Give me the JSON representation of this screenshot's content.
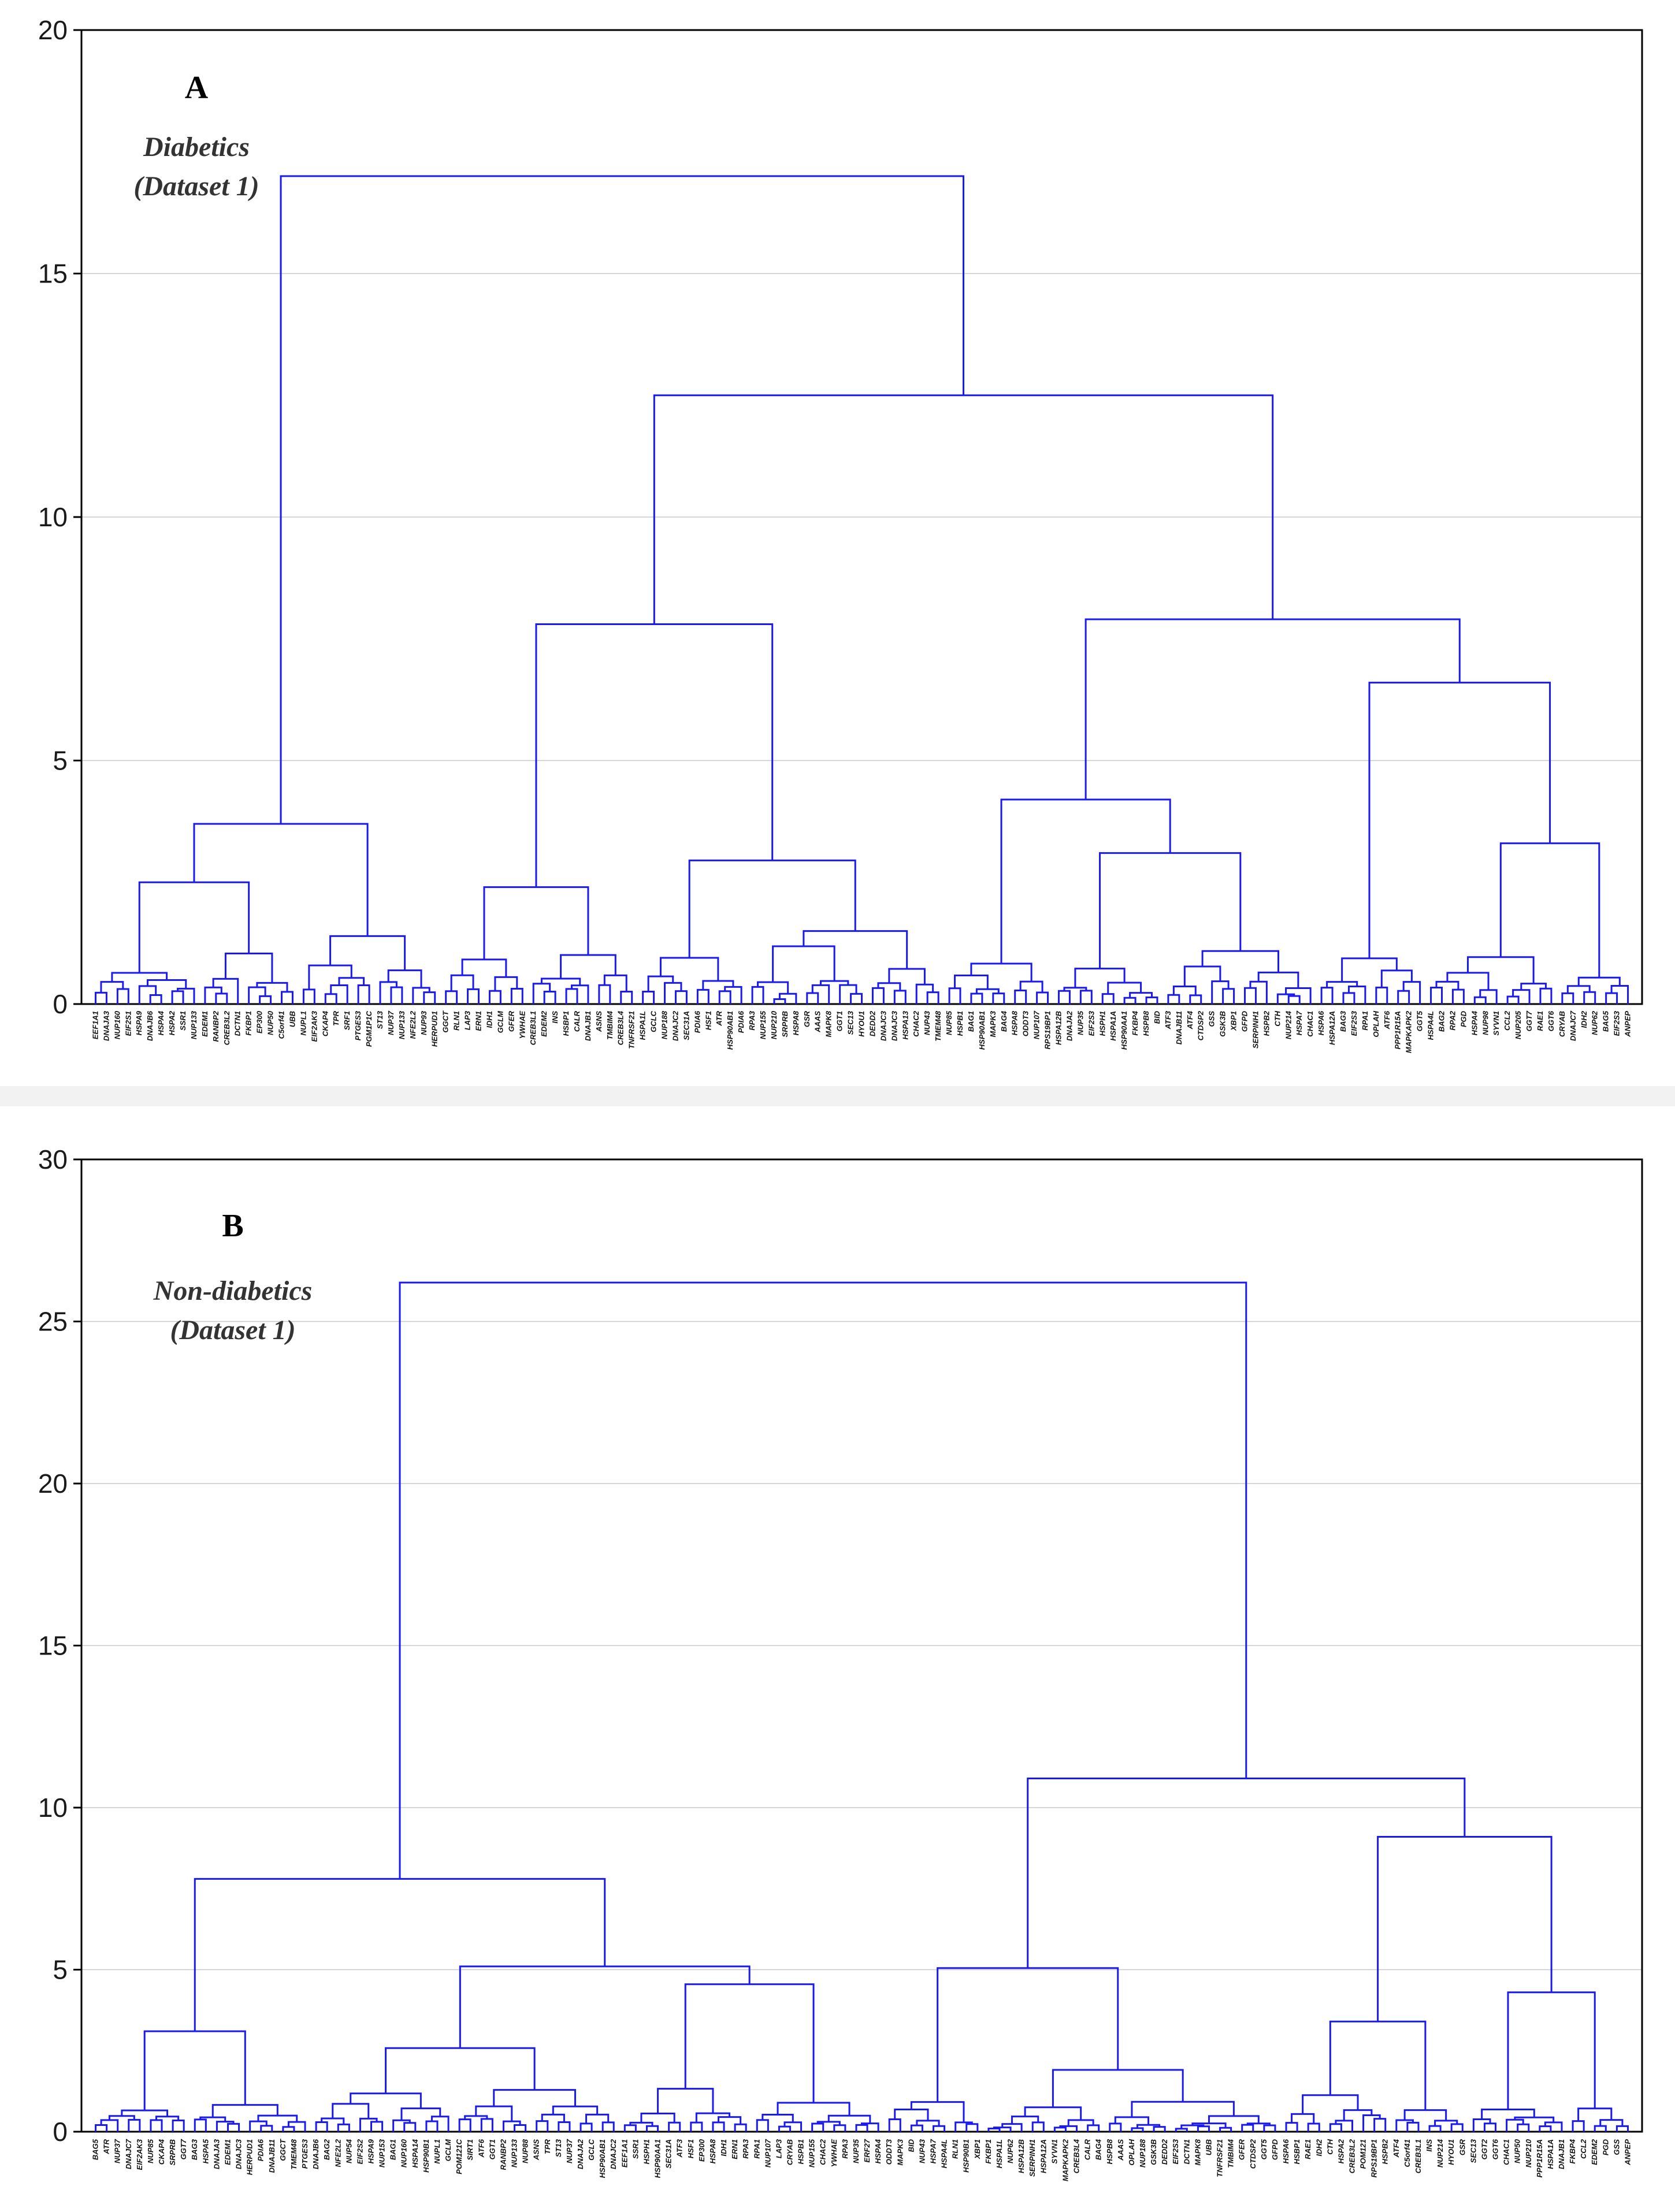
{
  "chart_data": [
    {
      "type": "dendrogram",
      "panel": "A",
      "title": "Diabetics",
      "subtitle": "(Dataset 1)",
      "ylabel": "",
      "ylim": [
        0,
        20
      ],
      "yticks": [
        0,
        5,
        10,
        15,
        20
      ],
      "grid": true,
      "leaves": [
        "EEF1A1",
        "DNAJA3",
        "NUP160",
        "EIF2S1",
        "HSPA9",
        "DNAJB6",
        "HSPA4",
        "HSPA2",
        "SSR1",
        "NUP133",
        "EDEM1",
        "RANBP2",
        "CREB3L2",
        "DCTN1",
        "FKBP1",
        "EP300",
        "NUP50",
        "C5orf41",
        "UBB",
        "NUPL1",
        "EIF2AK3",
        "CKAP4",
        "TPR",
        "SRF1",
        "PTGES3",
        "PGM1P1C",
        "ST13",
        "NUP37",
        "NUP133",
        "NFE2L2",
        "NUP93",
        "HERPUD1",
        "GGCT",
        "RLN1",
        "LAP3",
        "ERN1",
        "IDH1",
        "GCLM",
        "GFER",
        "YWHAE",
        "CREB3L1",
        "EDEM2",
        "INS",
        "HSBP1",
        "CALR",
        "DNAJB1",
        "ASNS",
        "TMBIM4",
        "CREB3L4",
        "TNFRSF21",
        "HSPA1L",
        "GCLC",
        "NUP188",
        "DNAJC2",
        "SEC31A",
        "PDIA6",
        "HSF1",
        "ATR",
        "HSP90AB1",
        "PDIA6",
        "RPA3",
        "NUP155",
        "NUP210",
        "SRPRB",
        "HSPA8",
        "GSR",
        "AAAS",
        "MAPK8",
        "GGT1",
        "SEC13",
        "HYOU1",
        "DEDD2",
        "DNAJC3",
        "DNAJC3",
        "HSPA13",
        "CHAC2",
        "NUP43",
        "TMEM48",
        "NUP85",
        "HSPB1",
        "BAG1",
        "HSP90AB1",
        "MAPK3",
        "BAG4",
        "HSPA8",
        "ODDT3",
        "NUP107",
        "RPS19BP1",
        "HSPA12B",
        "DNAJA2",
        "NUP35",
        "EIF2S3",
        "HSPH1",
        "HSPA1A",
        "HSP90AA1",
        "FKBP4",
        "HSPB8",
        "BID",
        "ATF3",
        "DNAJB11",
        "ATF4",
        "CTDSP2",
        "GSS",
        "GSK3B",
        "XBP1",
        "GFPD",
        "SERPINH1",
        "HSPB2",
        "CTH",
        "NUP214",
        "HSPA7",
        "CHAC1",
        "HSPA6",
        "HSPA12A",
        "BAG3",
        "EIF2S3",
        "RPA1",
        "OPLAH",
        "ATF6",
        "PPP1R15A",
        "MAPKAPK2",
        "GGT5",
        "HSPA4L",
        "BAG2",
        "RPA2",
        "PGD",
        "HSPA4",
        "NUP98",
        "SYVN1",
        "CCL2",
        "NUP205",
        "GGT7",
        "RAE1",
        "GGT6",
        "CRYAB",
        "DNAJC7",
        "IDH2",
        "NUP62",
        "BAG5",
        "EIF2S3",
        "ANPEP"
      ],
      "root_height": 17.0,
      "main_merges": [
        {
          "height": 17.0,
          "left": "left block",
          "right": "right block"
        },
        {
          "height": 12.5,
          "left": "middle block",
          "right": "right block"
        },
        {
          "height": 7.8,
          "left": "middle-left",
          "right": "middle-right"
        },
        {
          "height": 7.9,
          "left": "right-left",
          "right": "right-right"
        },
        {
          "height": 6.6,
          "left": "right-right-a",
          "right": "right-right-b"
        },
        {
          "height": 4.2,
          "left": "right-left-a",
          "right": "right-left-b"
        },
        {
          "height": 3.7,
          "left": "left-a",
          "right": "left-b"
        },
        {
          "height": 3.3,
          "left": "rr-b-1",
          "right": "rr-b-2"
        },
        {
          "height": 2.95,
          "left": "ml-a",
          "right": "ml-b"
        },
        {
          "height": 2.5,
          "left": "l-a1",
          "right": "l-a2"
        },
        {
          "height": 2.4,
          "left": "m-a1",
          "right": "m-a2"
        }
      ]
    },
    {
      "type": "dendrogram",
      "panel": "B",
      "title": "Non-diabetics",
      "subtitle": "(Dataset 1)",
      "ylabel": "",
      "ylim": [
        0,
        30
      ],
      "yticks": [
        0,
        5,
        10,
        15,
        20,
        25,
        30
      ],
      "grid": true,
      "leaves": [
        "BAG5",
        "ATR",
        "NUP37",
        "DNAJC7",
        "EIF2AK3",
        "NUP85",
        "CKAP4",
        "SRPRB",
        "GGT7",
        "BAG3",
        "HSPA5",
        "DNAJA3",
        "EDEM1",
        "DNAJC3",
        "HERPUD1",
        "PDIA6",
        "DNAJB11",
        "GGCT",
        "TMEM48",
        "PTGES3",
        "DNAJB6",
        "BAG2",
        "NFE2L2",
        "NUP54",
        "EIF2S2",
        "HSPA9",
        "NUP153",
        "BAG1",
        "NUP160",
        "HSPA14",
        "HSP90B1",
        "NUPL1",
        "GCLM",
        "POM121C",
        "SIRT1",
        "ATF6",
        "GGT1",
        "RANBP2",
        "NUP133",
        "NUP88",
        "ASNS",
        "TPR",
        "ST13",
        "NUP37",
        "DNAJA2",
        "GCLC",
        "HSP90AB1",
        "DNAJC2",
        "EEF1A1",
        "SSR1",
        "HSPH1",
        "HSP90AA1",
        "SEC31A",
        "ATF3",
        "HSF1",
        "EP300",
        "HSPA8",
        "IDH1",
        "ERN1",
        "RPA3",
        "RPA1",
        "NUP107",
        "LAP3",
        "CRYAB",
        "HSPB1",
        "NUP155",
        "CHAC2",
        "YWHAE",
        "RPA3",
        "NUP35",
        "ERF27",
        "HSPA4",
        "ODDT3",
        "MAPK3",
        "BID",
        "NUP43",
        "HSPA7",
        "HSPA4L",
        "RLN1",
        "HSP90B1",
        "XBP1",
        "FKBP1",
        "HSPA1L",
        "NUP62",
        "HSPA12B",
        "SERPINH1",
        "HSPA12A",
        "SYVN1",
        "MAPKAPK2",
        "CREB3L4",
        "CALR",
        "BAG4",
        "HSPB8",
        "AAAS",
        "OPLAH",
        "NUP188",
        "GSK3B",
        "DEDD2",
        "EIF2S3",
        "DCTN1",
        "MAPK8",
        "UBB",
        "TNFRSF21",
        "TMBIM4",
        "GFER",
        "CTDSP2",
        "GGT5",
        "GFPD",
        "HSPA6",
        "HSBP1",
        "RAE1",
        "IDH2",
        "CTH",
        "HSPA2",
        "CREB3L2",
        "POM121",
        "RPS19BP1",
        "HSPB2",
        "ATF4",
        "C5orf41",
        "CREB3L1",
        "INS",
        "NUP214",
        "HYOU1",
        "GSR",
        "SEC13",
        "GGT2",
        "GGT6",
        "CHAC1",
        "NUP50",
        "NUP210",
        "PPP1R15A",
        "HSPA1A",
        "DNAJB1",
        "FKBP4",
        "CCL2",
        "EDEM2",
        "PGD",
        "GSS",
        "ANPEP"
      ],
      "root_height": 26.2,
      "main_merges": [
        {
          "height": 26.2,
          "left": "left block",
          "right": "right block"
        },
        {
          "height": 10.9,
          "left": "right-a",
          "right": "right-b"
        },
        {
          "height": 9.1,
          "left": "right-b-1",
          "right": "right-b-2"
        },
        {
          "height": 7.8,
          "left": "left-a",
          "right": "left-b"
        },
        {
          "height": 5.1,
          "left": "left-b-1",
          "right": "left-b-2"
        },
        {
          "height": 5.05,
          "left": "right-a-1",
          "right": "right-a-2"
        },
        {
          "height": 4.55,
          "left": "lb2-a",
          "right": "lb2-b"
        },
        {
          "height": 4.3,
          "left": "rb2-a",
          "right": "rb2-b"
        },
        {
          "height": 3.4,
          "left": "rb1-a",
          "right": "rb1-b"
        },
        {
          "height": 3.1,
          "left": "la-a",
          "right": "la-b"
        }
      ]
    }
  ]
}
